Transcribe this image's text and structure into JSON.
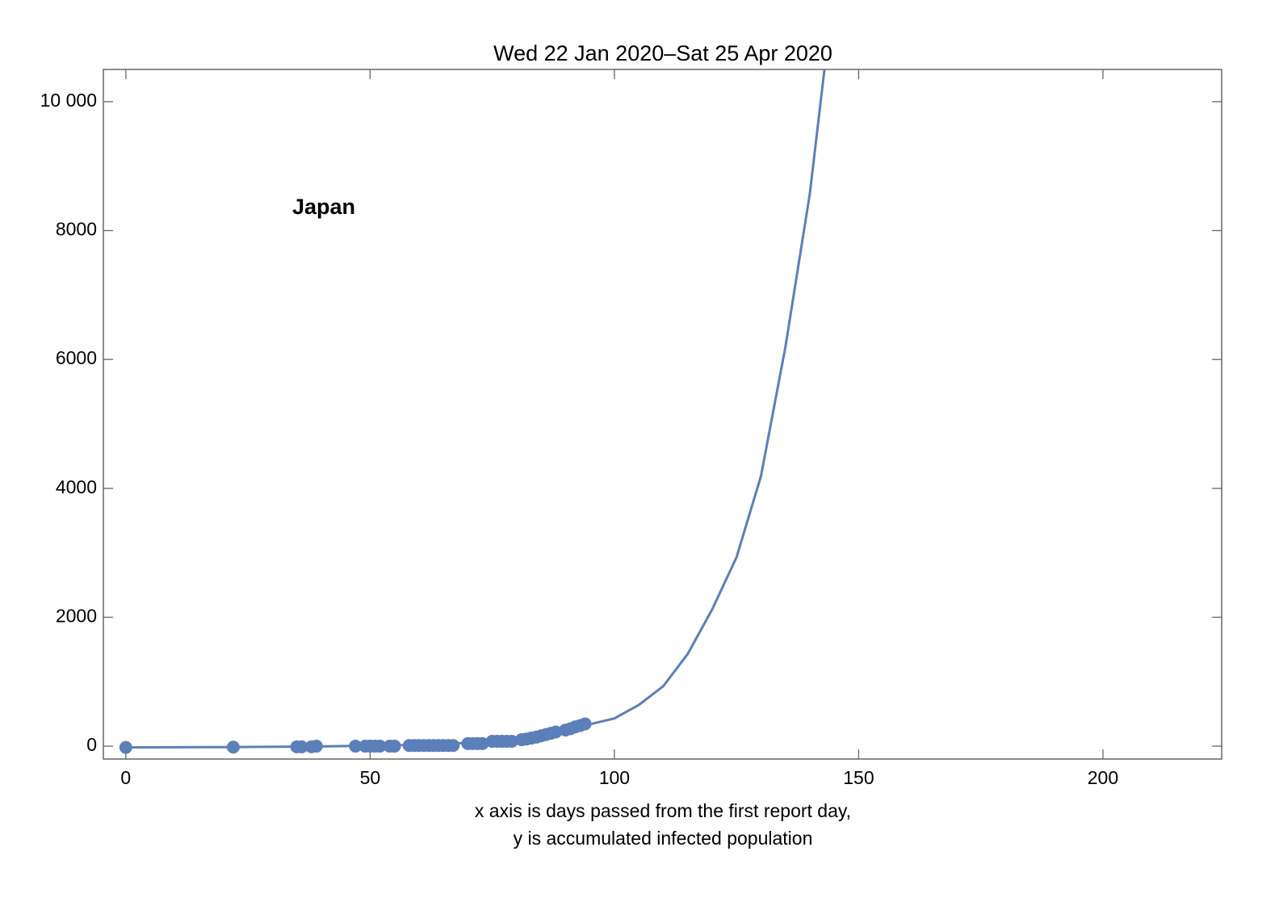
{
  "chart_data": {
    "type": "scatter",
    "title": "Wed 22 Jan 2020–Sat 25 Apr 2020",
    "annotation": "Japan",
    "xlabel": [
      "x axis is days passed from the first report day,",
      "y is accumulated infected population"
    ],
    "xlim": [
      -4.6,
      224.3
    ],
    "ylim": [
      -200,
      10500
    ],
    "xticks": [
      0,
      50,
      100,
      150,
      200
    ],
    "yticks": [
      0,
      2000,
      4000,
      6000,
      8000,
      {
        "value": 10000,
        "label": "10 000"
      }
    ],
    "series": [
      {
        "style": "line",
        "color": "#5b7fb8",
        "x": [
          0,
          20,
          40,
          60,
          70,
          80,
          90,
          100,
          105,
          110,
          115,
          120,
          125,
          130,
          135,
          140,
          143
        ],
        "values": [
          -20,
          -15,
          -5,
          20,
          50,
          120,
          250,
          430,
          640,
          930,
          1430,
          2120,
          2930,
          4190,
          6190,
          8570,
          10500
        ]
      },
      {
        "style": "markers",
        "color": "#5b7fb8",
        "x": [
          0,
          22,
          35,
          36,
          38,
          39,
          47,
          49,
          50,
          51,
          52,
          54,
          55,
          58,
          59,
          60,
          61,
          62,
          63,
          64,
          65,
          66,
          67,
          70,
          71,
          72,
          73,
          75,
          76,
          77,
          78,
          79,
          81,
          82,
          83,
          84,
          85,
          86,
          87,
          88,
          90,
          91,
          92,
          93,
          94
        ],
        "values": [
          -20,
          -15,
          -10,
          -10,
          -10,
          0,
          0,
          0,
          0,
          0,
          0,
          0,
          0,
          10,
          10,
          10,
          10,
          10,
          10,
          10,
          10,
          10,
          10,
          40,
          40,
          40,
          40,
          75,
          75,
          75,
          75,
          75,
          100,
          110,
          125,
          140,
          160,
          180,
          200,
          220,
          250,
          270,
          300,
          320,
          345
        ]
      }
    ]
  }
}
